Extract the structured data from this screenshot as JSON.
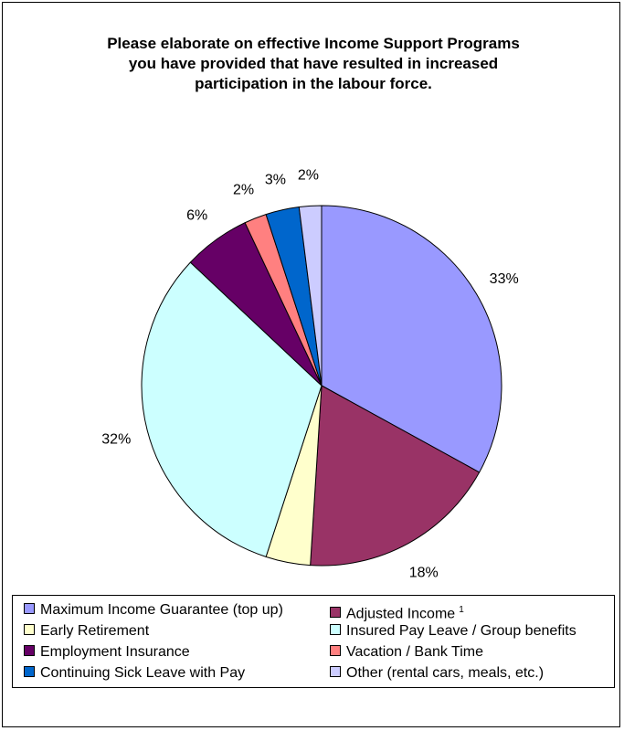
{
  "chart_data": {
    "type": "pie",
    "title_lines": [
      "Please elaborate on effective Income Support Programs",
      "you have provided that have resulted in increased",
      "participation in the labour force."
    ],
    "slices": [
      {
        "label": "Maximum Income Guarantee (top up)",
        "value": 33,
        "display": "33%",
        "color": "#9999ff"
      },
      {
        "label": "Adjusted Income",
        "sup": "1",
        "value": 18,
        "display": "18%",
        "color": "#993366"
      },
      {
        "label": "Early Retirement",
        "value": 4,
        "display": "4%",
        "color": "#ffffcc"
      },
      {
        "label": "Insured Pay Leave / Group benefits",
        "value": 32,
        "display": "32%",
        "color": "#ccffff"
      },
      {
        "label": "Employment Insurance",
        "value": 6,
        "display": "6%",
        "color": "#660066"
      },
      {
        "label": "Vacation / Bank Time",
        "value": 2,
        "display": "2%",
        "color": "#ff8080"
      },
      {
        "label": "Continuing Sick Leave with Pay",
        "value": 3,
        "display": "3%",
        "color": "#0066cc"
      },
      {
        "label": "Other (rental cars, meals, etc.)",
        "value": 2,
        "display": "2%",
        "color": "#ccccff"
      }
    ],
    "legend_placement": "bottom"
  }
}
